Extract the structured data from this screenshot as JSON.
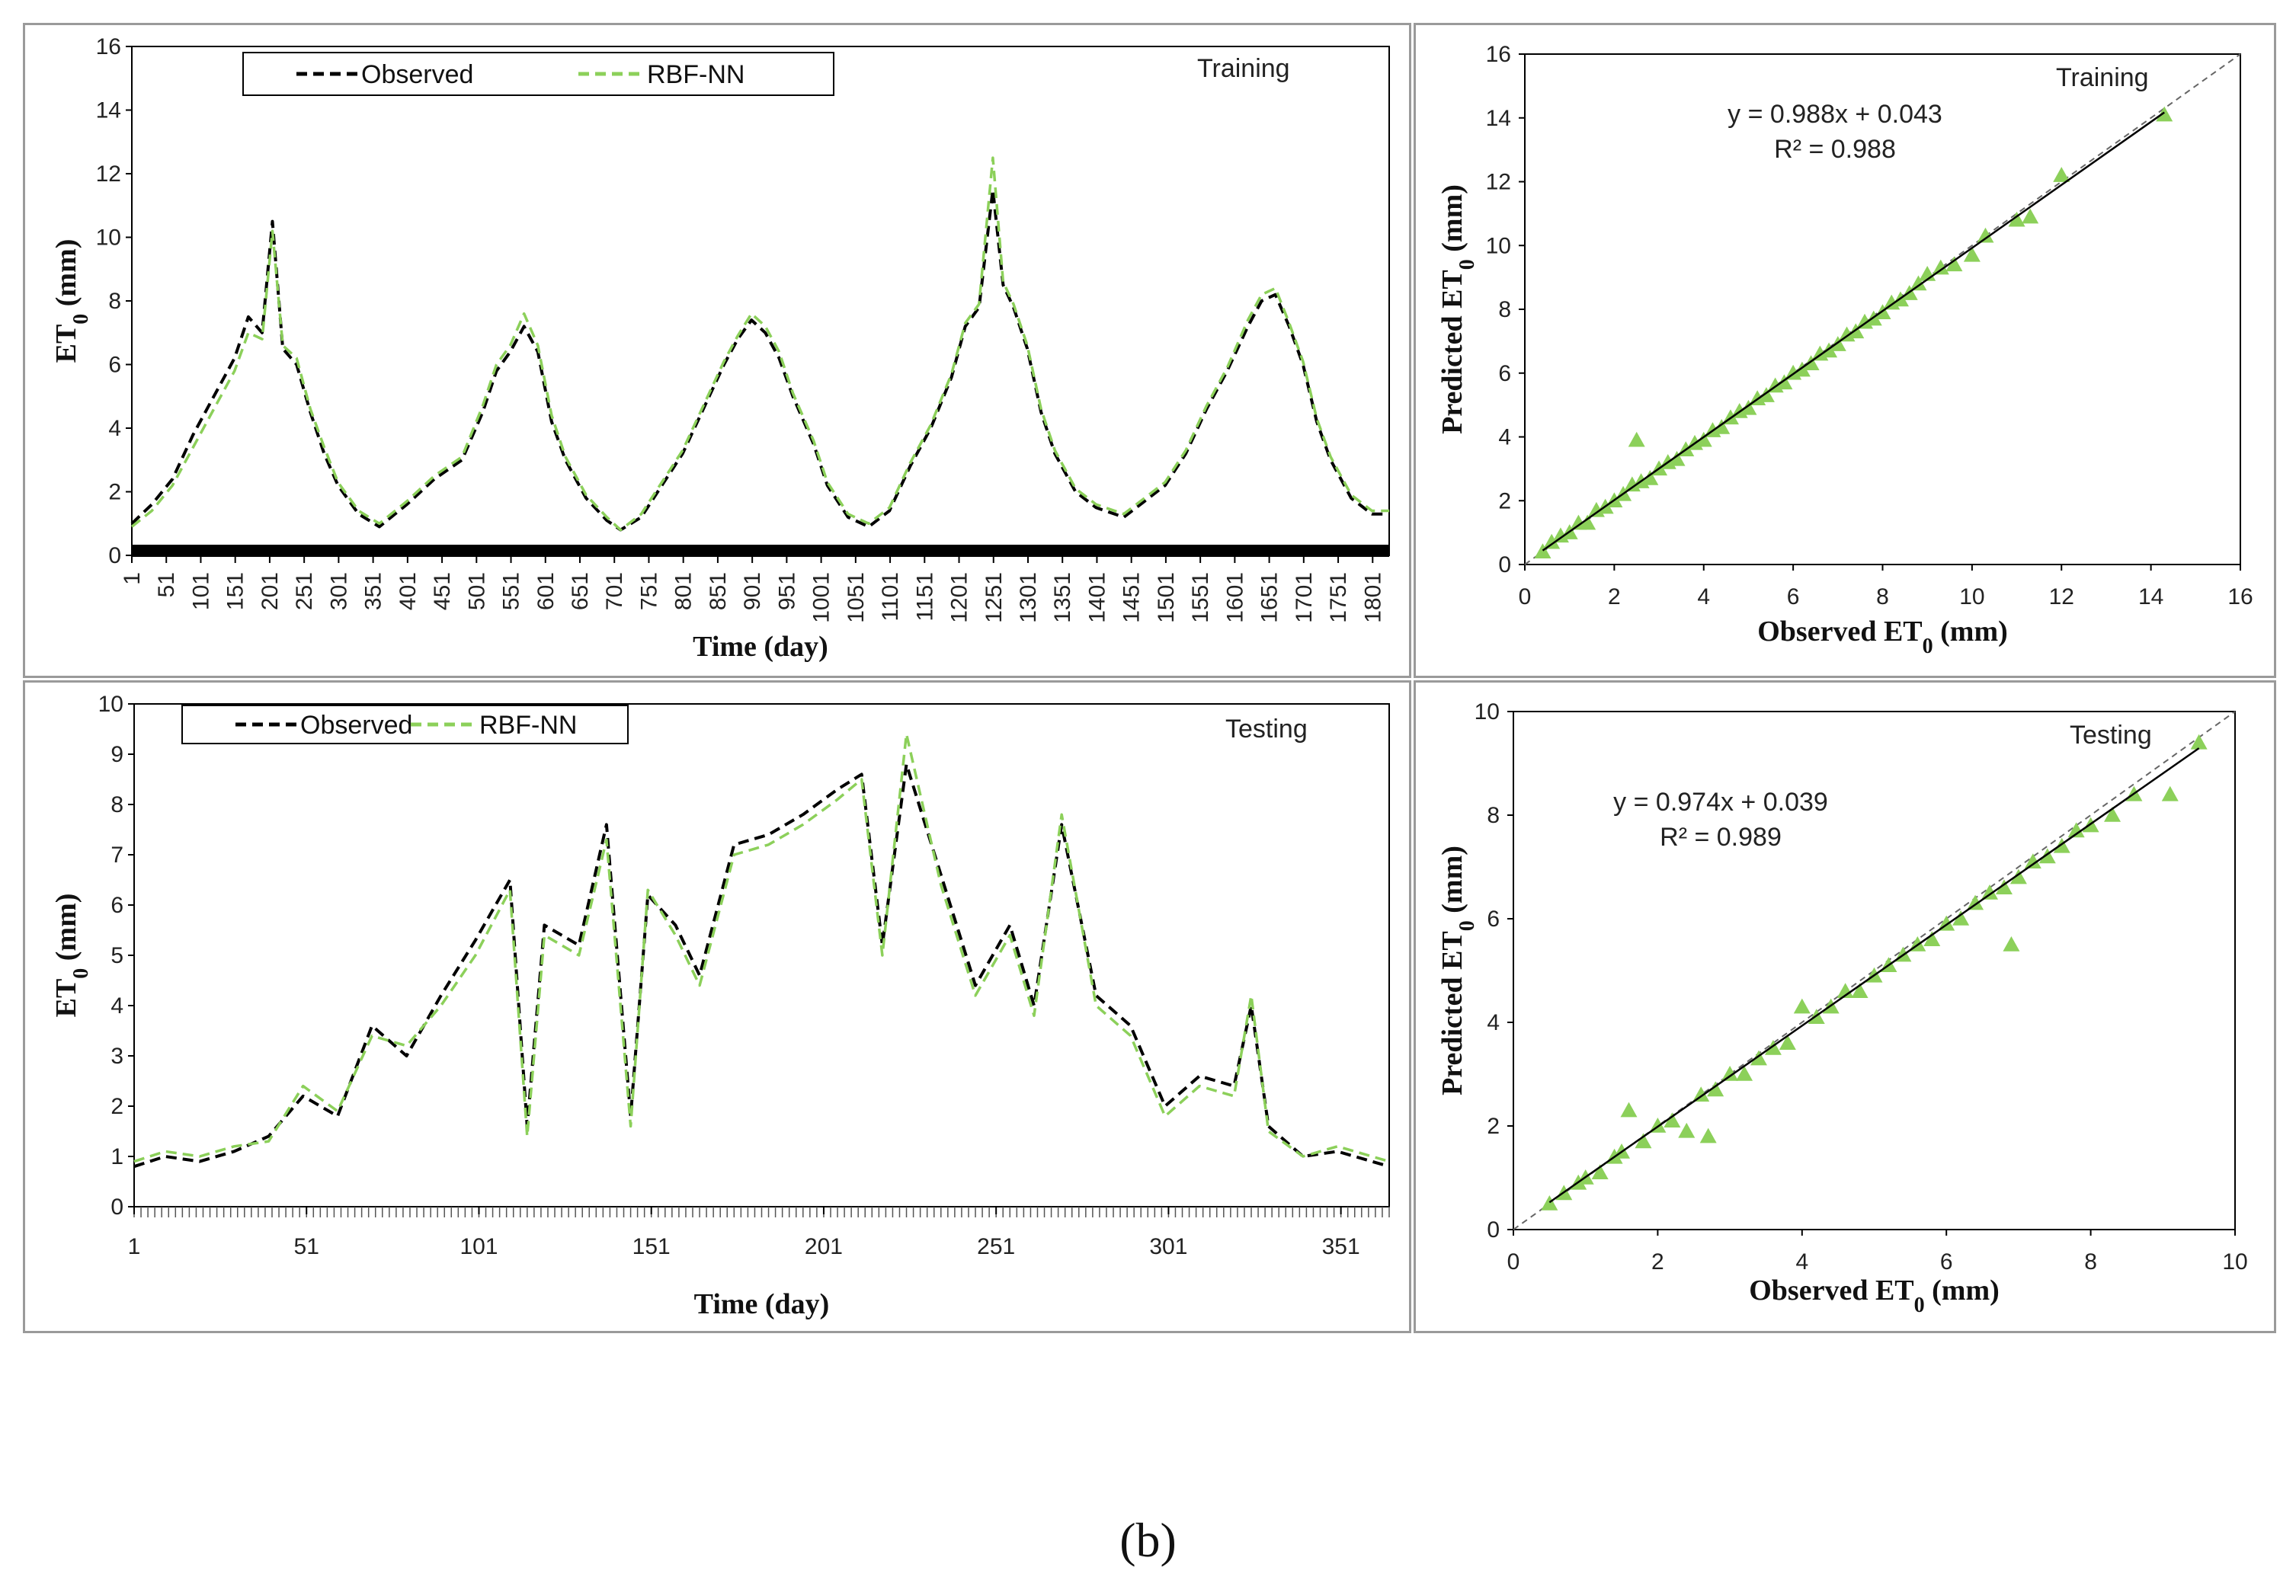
{
  "figure": {
    "caption": "(b)"
  },
  "colors": {
    "observed": "#000000",
    "predicted": "#8cd05a",
    "fit": "#000000",
    "refline": "#666666"
  },
  "chart_data": [
    {
      "id": "training-timeseries",
      "type": "line",
      "annotation": "Training",
      "xlabel": "Time (day)",
      "ylabel_main": "ET",
      "ylabel_sub": "0",
      "ylabel_tail": " (mm)",
      "ylim": [
        0,
        16
      ],
      "yticks": [
        "0",
        "2",
        "4",
        "6",
        "8",
        "10",
        "12",
        "14",
        "16"
      ],
      "xlim": [
        1,
        1825
      ],
      "xticks": [
        "1",
        "51",
        "101",
        "151",
        "201",
        "251",
        "301",
        "351",
        "401",
        "451",
        "501",
        "551",
        "601",
        "651",
        "701",
        "751",
        "801",
        "851",
        "901",
        "951",
        "1001",
        "1051",
        "1101",
        "1151",
        "1201",
        "1251",
        "1301",
        "1351",
        "1401",
        "1451",
        "1501",
        "1551",
        "1601",
        "1651",
        "1701",
        "1751",
        "1801"
      ],
      "legend": [
        "Observed",
        "RBF-NN"
      ],
      "series": [
        {
          "name": "Observed",
          "x": [
            1,
            30,
            60,
            90,
            120,
            150,
            170,
            190,
            205,
            220,
            240,
            260,
            280,
            300,
            330,
            360,
            400,
            440,
            480,
            510,
            530,
            550,
            570,
            590,
            610,
            630,
            660,
            690,
            710,
            740,
            770,
            800,
            830,
            860,
            880,
            900,
            920,
            940,
            960,
            990,
            1010,
            1040,
            1070,
            1100,
            1130,
            1160,
            1190,
            1210,
            1230,
            1250,
            1265,
            1280,
            1300,
            1320,
            1340,
            1370,
            1400,
            1440,
            1470,
            1500,
            1530,
            1560,
            1590,
            1620,
            1640,
            1660,
            1680,
            1700,
            1720,
            1740,
            1770,
            1800,
            1825
          ],
          "values": [
            1.0,
            1.6,
            2.4,
            3.8,
            5.0,
            6.2,
            7.5,
            7.0,
            10.5,
            6.5,
            6.0,
            4.5,
            3.2,
            2.2,
            1.3,
            0.9,
            1.6,
            2.4,
            3.0,
            4.5,
            5.8,
            6.4,
            7.2,
            6.4,
            4.2,
            3.0,
            1.8,
            1.1,
            0.8,
            1.2,
            2.2,
            3.2,
            4.6,
            6.0,
            6.8,
            7.4,
            7.0,
            6.2,
            5.0,
            3.5,
            2.2,
            1.2,
            0.9,
            1.4,
            2.8,
            4.0,
            5.6,
            7.2,
            7.8,
            11.5,
            8.5,
            7.8,
            6.5,
            4.5,
            3.2,
            2.0,
            1.5,
            1.2,
            1.7,
            2.2,
            3.2,
            4.6,
            5.8,
            7.2,
            8.0,
            8.2,
            7.2,
            6.0,
            4.2,
            3.0,
            1.8,
            1.3,
            1.3
          ]
        },
        {
          "name": "RBF-NN",
          "x": [
            1,
            30,
            60,
            90,
            120,
            150,
            170,
            190,
            205,
            220,
            240,
            260,
            280,
            300,
            330,
            360,
            400,
            440,
            480,
            510,
            530,
            550,
            570,
            590,
            610,
            630,
            660,
            690,
            710,
            740,
            770,
            800,
            830,
            860,
            880,
            900,
            920,
            940,
            960,
            990,
            1010,
            1040,
            1070,
            1100,
            1130,
            1160,
            1190,
            1210,
            1230,
            1250,
            1265,
            1280,
            1300,
            1320,
            1340,
            1370,
            1400,
            1440,
            1470,
            1500,
            1530,
            1560,
            1590,
            1620,
            1640,
            1660,
            1680,
            1700,
            1720,
            1740,
            1770,
            1800,
            1825
          ],
          "values": [
            0.9,
            1.4,
            2.2,
            3.4,
            4.6,
            5.8,
            7.0,
            6.8,
            10.2,
            6.6,
            6.2,
            4.6,
            3.4,
            2.3,
            1.4,
            1.0,
            1.7,
            2.5,
            3.1,
            4.7,
            6.0,
            6.6,
            7.6,
            6.6,
            4.4,
            3.1,
            1.9,
            1.2,
            0.8,
            1.3,
            2.3,
            3.3,
            4.7,
            6.1,
            6.9,
            7.6,
            7.2,
            6.4,
            5.1,
            3.6,
            2.3,
            1.3,
            1.0,
            1.5,
            2.9,
            4.1,
            5.7,
            7.3,
            7.9,
            12.5,
            8.6,
            7.9,
            6.6,
            4.6,
            3.3,
            2.1,
            1.6,
            1.3,
            1.8,
            2.3,
            3.3,
            4.7,
            5.9,
            7.4,
            8.2,
            8.4,
            7.3,
            6.1,
            4.3,
            3.1,
            1.9,
            1.4,
            1.4
          ]
        }
      ]
    },
    {
      "id": "training-scatter",
      "type": "scatter",
      "annotation": "Training",
      "xlabel_main": "Observed ET",
      "xlabel_sub": "0",
      "xlabel_tail": " (mm)",
      "ylabel_main": "Predicted ET",
      "ylabel_sub": "0",
      "ylabel_tail": " (mm)",
      "xlim": [
        0,
        16
      ],
      "ylim": [
        0,
        16
      ],
      "xticks": [
        "0",
        "2",
        "4",
        "6",
        "8",
        "10",
        "12",
        "14",
        "16"
      ],
      "yticks": [
        "0",
        "2",
        "4",
        "6",
        "8",
        "10",
        "12",
        "14",
        "16"
      ],
      "equation": "y = 0.988x + 0.043",
      "r2": "R² = 0.988",
      "fit": {
        "slope": 0.988,
        "intercept": 0.043
      },
      "x": [
        0.4,
        0.6,
        0.8,
        1.0,
        1.2,
        1.4,
        1.6,
        1.8,
        2.0,
        2.2,
        2.4,
        2.5,
        2.6,
        2.8,
        3.0,
        3.2,
        3.4,
        3.6,
        3.8,
        4.0,
        4.2,
        4.4,
        4.6,
        4.8,
        5.0,
        5.2,
        5.4,
        5.6,
        5.8,
        6.0,
        6.2,
        6.4,
        6.6,
        6.8,
        7.0,
        7.2,
        7.4,
        7.6,
        7.8,
        8.0,
        8.2,
        8.4,
        8.6,
        8.8,
        9.0,
        9.3,
        9.6,
        10.0,
        10.3,
        11.0,
        11.3,
        12.0,
        14.3
      ],
      "values": [
        0.4,
        0.7,
        0.9,
        1.0,
        1.3,
        1.3,
        1.7,
        1.8,
        2.0,
        2.2,
        2.5,
        3.9,
        2.6,
        2.7,
        3.0,
        3.2,
        3.3,
        3.6,
        3.8,
        3.9,
        4.2,
        4.3,
        4.6,
        4.8,
        4.9,
        5.2,
        5.3,
        5.6,
        5.7,
        6.0,
        6.1,
        6.3,
        6.6,
        6.7,
        6.9,
        7.2,
        7.3,
        7.6,
        7.7,
        7.9,
        8.2,
        8.3,
        8.5,
        8.8,
        9.1,
        9.3,
        9.4,
        9.7,
        10.3,
        10.8,
        10.9,
        12.2,
        14.1
      ]
    },
    {
      "id": "testing-timeseries",
      "type": "line",
      "annotation": "Testing",
      "xlabel": "Time (day)",
      "ylabel_main": "ET",
      "ylabel_sub": "0",
      "ylabel_tail": " (mm)",
      "ylim": [
        0,
        10
      ],
      "yticks": [
        "0",
        "1",
        "2",
        "3",
        "4",
        "5",
        "6",
        "7",
        "8",
        "9",
        "10"
      ],
      "xlim": [
        1,
        365
      ],
      "xticks": [
        "1",
        "51",
        "101",
        "151",
        "201",
        "251",
        "301",
        "351"
      ],
      "legend": [
        "Observed",
        "RBF-NN"
      ],
      "series": [
        {
          "name": "Observed",
          "x": [
            1,
            10,
            20,
            30,
            40,
            50,
            60,
            70,
            80,
            90,
            100,
            110,
            115,
            120,
            130,
            138,
            145,
            150,
            158,
            165,
            175,
            185,
            195,
            205,
            212,
            218,
            225,
            235,
            245,
            255,
            262,
            270,
            280,
            290,
            300,
            310,
            320,
            325,
            330,
            340,
            350,
            360,
            365
          ],
          "values": [
            0.8,
            1.0,
            0.9,
            1.1,
            1.4,
            2.2,
            1.8,
            3.6,
            3.0,
            4.2,
            5.3,
            6.5,
            1.6,
            5.6,
            5.2,
            7.6,
            1.8,
            6.2,
            5.6,
            4.6,
            7.2,
            7.4,
            7.8,
            8.3,
            8.6,
            5.2,
            8.8,
            6.6,
            4.4,
            5.6,
            4.0,
            7.6,
            4.2,
            3.6,
            2.0,
            2.6,
            2.4,
            4.0,
            1.6,
            1.0,
            1.1,
            0.9,
            0.8
          ]
        },
        {
          "name": "RBF-NN",
          "x": [
            1,
            10,
            20,
            30,
            40,
            50,
            60,
            70,
            80,
            90,
            100,
            110,
            115,
            120,
            130,
            138,
            145,
            150,
            158,
            165,
            175,
            185,
            195,
            205,
            212,
            218,
            225,
            235,
            245,
            255,
            262,
            270,
            280,
            290,
            300,
            310,
            320,
            325,
            330,
            340,
            350,
            360,
            365
          ],
          "values": [
            0.9,
            1.1,
            1.0,
            1.2,
            1.3,
            2.4,
            1.9,
            3.4,
            3.2,
            4.0,
            5.0,
            6.3,
            1.4,
            5.4,
            5.0,
            7.3,
            1.6,
            6.3,
            5.4,
            4.4,
            7.0,
            7.2,
            7.6,
            8.1,
            8.5,
            5.0,
            9.4,
            6.4,
            4.2,
            5.4,
            3.8,
            7.8,
            4.0,
            3.4,
            1.8,
            2.4,
            2.2,
            4.2,
            1.5,
            1.0,
            1.2,
            1.0,
            0.9
          ]
        }
      ]
    },
    {
      "id": "testing-scatter",
      "type": "scatter",
      "annotation": "Testing",
      "xlabel_main": "Observed ET",
      "xlabel_sub": "0",
      "xlabel_tail": " (mm)",
      "ylabel_main": "Predicted ET",
      "ylabel_sub": "0",
      "ylabel_tail": " (mm)",
      "xlim": [
        0,
        10
      ],
      "ylim": [
        0,
        10
      ],
      "xticks": [
        "0",
        "2",
        "4",
        "6",
        "8",
        "10"
      ],
      "yticks": [
        "0",
        "2",
        "4",
        "6",
        "8",
        "10"
      ],
      "equation": "y = 0.974x + 0.039",
      "r2": "R² = 0.989",
      "fit": {
        "slope": 0.974,
        "intercept": 0.039
      },
      "x": [
        0.5,
        0.7,
        0.9,
        1.0,
        1.2,
        1.4,
        1.5,
        1.6,
        1.8,
        2.0,
        2.2,
        2.4,
        2.6,
        2.7,
        2.8,
        3.0,
        3.2,
        3.4,
        3.6,
        3.8,
        4.0,
        4.2,
        4.4,
        4.6,
        4.8,
        5.0,
        5.2,
        5.4,
        5.6,
        5.8,
        6.0,
        6.2,
        6.4,
        6.6,
        6.8,
        6.9,
        7.0,
        7.2,
        7.4,
        7.6,
        7.8,
        8.0,
        8.3,
        8.6,
        9.1,
        9.5
      ],
      "values": [
        0.5,
        0.7,
        0.9,
        1.0,
        1.1,
        1.4,
        1.5,
        2.3,
        1.7,
        2.0,
        2.1,
        1.9,
        2.6,
        1.8,
        2.7,
        3.0,
        3.0,
        3.3,
        3.5,
        3.6,
        4.3,
        4.1,
        4.3,
        4.6,
        4.6,
        4.9,
        5.1,
        5.3,
        5.5,
        5.6,
        5.9,
        6.0,
        6.3,
        6.5,
        6.6,
        5.5,
        6.8,
        7.1,
        7.2,
        7.4,
        7.7,
        7.8,
        8.0,
        8.4,
        8.4,
        9.4
      ]
    }
  ]
}
